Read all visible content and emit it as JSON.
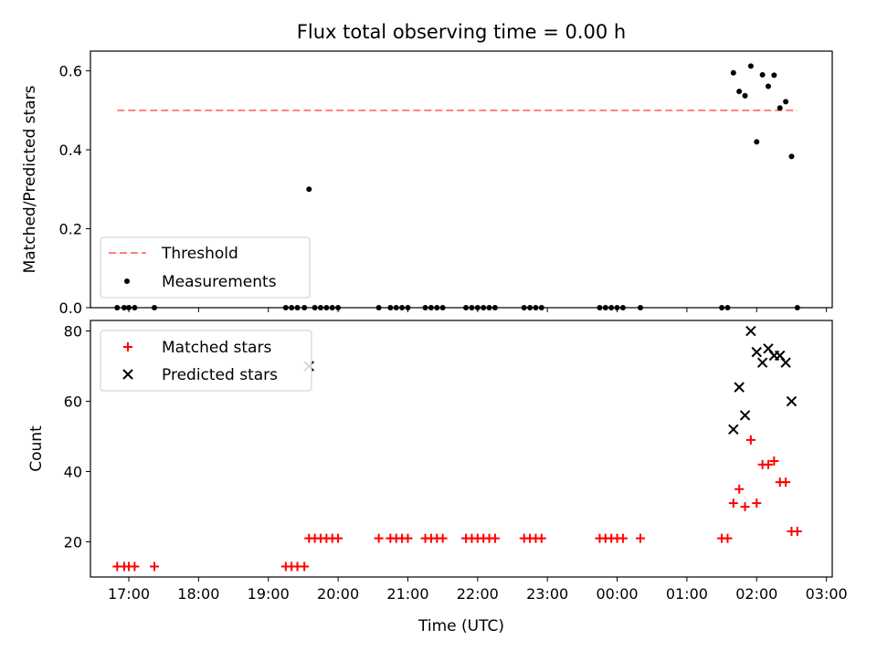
{
  "title": "Flux total observing time = 0.00 h",
  "xlabel": "Time (UTC)",
  "colors": {
    "threshold": "#ff7f7f",
    "measurements": "#000000",
    "matched": "#ff0000",
    "predicted": "#000000"
  },
  "chart_data": [
    {
      "type": "scatter",
      "panel": "top",
      "ylabel": "Matched/Predicted stars",
      "xlim": [
        "16:27",
        "03:05"
      ],
      "ylim": [
        0,
        0.65
      ],
      "y_ticks": [
        "0.0",
        "0.2",
        "0.4",
        "0.6"
      ],
      "legend": {
        "placement": "lower-left",
        "entries": [
          "Threshold",
          "Measurements"
        ]
      },
      "threshold": {
        "name": "Threshold",
        "y": 0.5,
        "x": [
          "16:50",
          "02:35"
        ]
      },
      "series": [
        {
          "name": "Measurements",
          "points": [
            [
              "16:50",
              0
            ],
            [
              "16:56",
              0
            ],
            [
              "17:00",
              0
            ],
            [
              "17:05",
              0
            ],
            [
              "17:22",
              0
            ],
            [
              "19:15",
              0
            ],
            [
              "19:20",
              0
            ],
            [
              "19:25",
              0
            ],
            [
              "19:31",
              0
            ],
            [
              "19:35",
              0.3
            ],
            [
              "19:40",
              0
            ],
            [
              "19:45",
              0
            ],
            [
              "19:50",
              0
            ],
            [
              "19:55",
              0
            ],
            [
              "20:00",
              0
            ],
            [
              "20:35",
              0
            ],
            [
              "20:45",
              0
            ],
            [
              "20:50",
              0
            ],
            [
              "20:55",
              0
            ],
            [
              "21:00",
              0
            ],
            [
              "21:15",
              0
            ],
            [
              "21:20",
              0
            ],
            [
              "21:25",
              0
            ],
            [
              "21:30",
              0
            ],
            [
              "21:50",
              0
            ],
            [
              "21:55",
              0
            ],
            [
              "22:00",
              0
            ],
            [
              "22:05",
              0
            ],
            [
              "22:10",
              0
            ],
            [
              "22:15",
              0
            ],
            [
              "22:40",
              0
            ],
            [
              "22:45",
              0
            ],
            [
              "22:50",
              0
            ],
            [
              "22:55",
              0
            ],
            [
              "23:45",
              0
            ],
            [
              "23:50",
              0
            ],
            [
              "23:55",
              0
            ],
            [
              "00:00",
              0
            ],
            [
              "00:05",
              0
            ],
            [
              "00:20",
              0
            ],
            [
              "01:30",
              0
            ],
            [
              "01:35",
              0
            ],
            [
              "01:40",
              0.595
            ],
            [
              "01:45",
              0.548
            ],
            [
              "01:50",
              0.537
            ],
            [
              "01:55",
              0.612
            ],
            [
              "02:00",
              0.42
            ],
            [
              "02:05",
              0.59
            ],
            [
              "02:10",
              0.561
            ],
            [
              "02:15",
              0.589
            ],
            [
              "02:20",
              0.506
            ],
            [
              "02:25",
              0.522
            ],
            [
              "02:30",
              0.383
            ],
            [
              "02:35",
              0
            ]
          ]
        }
      ]
    },
    {
      "type": "scatter",
      "panel": "bottom",
      "ylabel": "Count",
      "xlim": [
        "16:27",
        "03:05"
      ],
      "ylim": [
        10,
        83
      ],
      "y_ticks": [
        "20",
        "40",
        "60",
        "80"
      ],
      "x_ticks": [
        "17:00",
        "18:00",
        "19:00",
        "20:00",
        "21:00",
        "22:00",
        "23:00",
        "00:00",
        "01:00",
        "02:00",
        "03:00"
      ],
      "legend": {
        "placement": "upper-left",
        "entries": [
          "Matched stars",
          "Predicted stars"
        ]
      },
      "series": [
        {
          "name": "Matched stars",
          "points": [
            [
              "16:50",
              13
            ],
            [
              "16:56",
              13
            ],
            [
              "17:00",
              13
            ],
            [
              "17:05",
              13
            ],
            [
              "17:22",
              13
            ],
            [
              "19:15",
              13
            ],
            [
              "19:20",
              13
            ],
            [
              "19:25",
              13
            ],
            [
              "19:31",
              13
            ],
            [
              "19:35",
              21
            ],
            [
              "19:40",
              21
            ],
            [
              "19:45",
              21
            ],
            [
              "19:50",
              21
            ],
            [
              "19:55",
              21
            ],
            [
              "20:00",
              21
            ],
            [
              "20:35",
              21
            ],
            [
              "20:45",
              21
            ],
            [
              "20:50",
              21
            ],
            [
              "20:55",
              21
            ],
            [
              "21:00",
              21
            ],
            [
              "21:15",
              21
            ],
            [
              "21:20",
              21
            ],
            [
              "21:25",
              21
            ],
            [
              "21:30",
              21
            ],
            [
              "21:50",
              21
            ],
            [
              "21:55",
              21
            ],
            [
              "22:00",
              21
            ],
            [
              "22:05",
              21
            ],
            [
              "22:10",
              21
            ],
            [
              "22:15",
              21
            ],
            [
              "22:40",
              21
            ],
            [
              "22:45",
              21
            ],
            [
              "22:50",
              21
            ],
            [
              "22:55",
              21
            ],
            [
              "23:45",
              21
            ],
            [
              "23:50",
              21
            ],
            [
              "23:55",
              21
            ],
            [
              "00:00",
              21
            ],
            [
              "00:05",
              21
            ],
            [
              "00:20",
              21
            ],
            [
              "01:30",
              21
            ],
            [
              "01:35",
              21
            ],
            [
              "01:40",
              31
            ],
            [
              "01:45",
              35
            ],
            [
              "01:50",
              30
            ],
            [
              "01:55",
              49
            ],
            [
              "02:00",
              31
            ],
            [
              "02:05",
              42
            ],
            [
              "02:10",
              42
            ],
            [
              "02:15",
              43
            ],
            [
              "02:20",
              37
            ],
            [
              "02:25",
              37
            ],
            [
              "02:30",
              23
            ],
            [
              "02:35",
              23
            ]
          ]
        },
        {
          "name": "Predicted stars",
          "points": [
            [
              "19:35",
              70
            ],
            [
              "01:40",
              52
            ],
            [
              "01:45",
              64
            ],
            [
              "01:50",
              56
            ],
            [
              "01:55",
              80
            ],
            [
              "02:00",
              74
            ],
            [
              "02:05",
              71
            ],
            [
              "02:10",
              75
            ],
            [
              "02:15",
              73
            ],
            [
              "02:20",
              73
            ],
            [
              "02:25",
              71
            ],
            [
              "02:30",
              60
            ]
          ]
        }
      ]
    }
  ]
}
